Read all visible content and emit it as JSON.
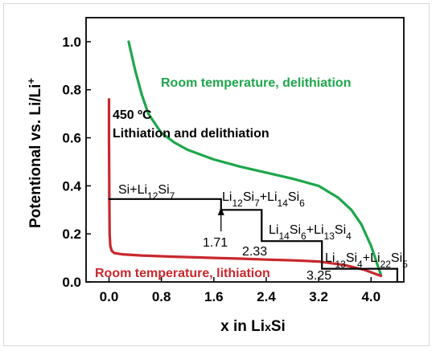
{
  "chart_data": {
    "type": "line",
    "xlabel": "x in LixSi",
    "ylabel": "Potentional vs. Li/Li+",
    "xlim": [
      -0.35,
      4.5
    ],
    "ylim": [
      0.0,
      1.1
    ],
    "x_ticks": [
      0.0,
      0.8,
      1.6,
      2.4,
      3.2,
      4.0
    ],
    "x_tick_labels": [
      "0.0",
      "0.8",
      "1.6",
      "2.4",
      "3.2",
      "4.0"
    ],
    "y_ticks": [
      0.0,
      0.2,
      0.4,
      0.6,
      0.8,
      1.0
    ],
    "y_tick_labels": [
      "0.0",
      "0.2",
      "0.4",
      "0.6",
      "0.8",
      "1.0"
    ],
    "series": [
      {
        "name": "Room temperature, delithiation",
        "color": "#1ea64b",
        "x": [
          0.3,
          0.4,
          0.5,
          0.6,
          0.8,
          1.0,
          1.2,
          1.6,
          2.0,
          2.4,
          2.8,
          3.2,
          3.5,
          3.7,
          3.85,
          4.0,
          4.1,
          4.15
        ],
        "y": [
          1.0,
          0.88,
          0.78,
          0.7,
          0.62,
          0.58,
          0.55,
          0.51,
          0.48,
          0.455,
          0.43,
          0.4,
          0.35,
          0.3,
          0.24,
          0.15,
          0.07,
          0.03
        ]
      },
      {
        "name": "Room temperature, lithiation",
        "color": "#c8282d",
        "x": [
          0.0,
          0.0,
          0.005,
          0.01,
          0.02,
          0.04,
          0.08,
          0.2,
          0.5,
          1.0,
          1.6,
          2.0,
          2.4,
          2.8,
          3.2,
          3.6,
          3.9,
          4.1,
          4.15
        ],
        "y": [
          0.76,
          0.6,
          0.35,
          0.2,
          0.15,
          0.13,
          0.12,
          0.115,
          0.11,
          0.105,
          0.1,
          0.097,
          0.093,
          0.09,
          0.085,
          0.07,
          0.05,
          0.03,
          0.025
        ]
      },
      {
        "name": "450 °C Lithiation and delithiation",
        "color": "#000000",
        "x": [
          0.0,
          1.71,
          1.71,
          2.33,
          2.33,
          3.25,
          3.25,
          4.4,
          4.4
        ],
        "y": [
          0.345,
          0.345,
          0.3,
          0.3,
          0.17,
          0.17,
          0.055,
          0.055,
          0.0
        ]
      }
    ],
    "annotations": {
      "green_label": "Room temperature, delithiation",
      "red_label": "Room temperature, lithiation",
      "hot_title": "450 ºC",
      "hot_subtitle": "Lithiation  and delithiation",
      "phase1": "Si+Li12Si7",
      "phase2": "Li12Si7+Li14Si6",
      "phase3": "Li14Si6+Li13Si4",
      "phase4": "Li13Si4+Li22Si5",
      "step1": "1.71",
      "step2": "2.33",
      "step3": "3.25"
    }
  }
}
